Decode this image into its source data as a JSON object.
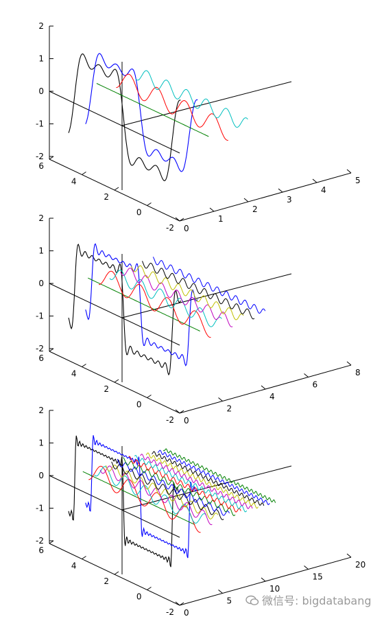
{
  "chart_data": [
    {
      "type": "line",
      "subtype": "3d-waterfall",
      "y_ticks": [
        "2",
        "1",
        "0",
        "-1",
        "-2"
      ],
      "x_ticks": [
        "6",
        "4",
        "2",
        "0",
        "-2"
      ],
      "z_ticks": [
        "0",
        "1",
        "2",
        "3",
        "4",
        "5"
      ],
      "z_range": [
        0,
        5
      ],
      "series": [
        {
          "color": "#000000",
          "kind": "sum",
          "values": [
            -0.9,
            -1.35,
            -0.9,
            0.6,
            1.0,
            0.5,
            -0.2,
            -1.2,
            -1.6,
            -1.8
          ]
        },
        {
          "color": "#0000ff",
          "kind": "sum",
          "values": [
            -0.95,
            -0.3,
            0.55,
            0.85,
            0.4,
            -0.5,
            -1.45,
            -1.7
          ]
        },
        {
          "color": "#008000",
          "kind": "sine",
          "values": [
            0,
            0,
            0,
            0
          ]
        },
        {
          "color": "#ff0000",
          "kind": "sine",
          "values": [
            0.8,
            -0.8,
            0.8,
            -0.8
          ]
        },
        {
          "color": "#00bfbf",
          "kind": "sine",
          "values": [
            0,
            0,
            0,
            0
          ]
        }
      ]
    },
    {
      "type": "line",
      "subtype": "3d-waterfall",
      "y_ticks": [
        "2",
        "1",
        "0",
        "-1",
        "-2"
      ],
      "x_ticks": [
        "6",
        "4",
        "2",
        "0",
        "-2"
      ],
      "z_ticks": [
        "0",
        "2",
        "4",
        "6",
        "8"
      ],
      "z_range": [
        0,
        8
      ],
      "series": [
        {
          "color": "#000000",
          "kind": "sum"
        },
        {
          "color": "#0000ff",
          "kind": "sum"
        },
        {
          "color": "#008000",
          "kind": "sine"
        },
        {
          "color": "#ff0000",
          "kind": "sine"
        },
        {
          "color": "#00bfbf",
          "kind": "sine"
        },
        {
          "color": "#bf00bf",
          "kind": "sine"
        },
        {
          "color": "#bfbf00",
          "kind": "sine"
        },
        {
          "color": "#000000",
          "kind": "sine"
        },
        {
          "color": "#0000ff",
          "kind": "sine"
        }
      ]
    },
    {
      "type": "line",
      "subtype": "3d-waterfall",
      "y_ticks": [
        "2",
        "1",
        "0",
        "-1",
        "-2"
      ],
      "x_ticks": [
        "6",
        "4",
        "2",
        "0",
        "-2"
      ],
      "z_ticks": [
        "0",
        "5",
        "10",
        "15",
        "20"
      ],
      "z_range": [
        0,
        20
      ],
      "series_colors": [
        "#000000",
        "#0000ff",
        "#008000",
        "#ff0000",
        "#00bfbf",
        "#bf00bf",
        "#bfbf00",
        "#000000",
        "#0000ff",
        "#008000",
        "#ff0000",
        "#00bfbf",
        "#bf00bf",
        "#bfbf00",
        "#000000",
        "#0000ff",
        "#008000"
      ]
    }
  ],
  "watermark": {
    "text": "微信号: bigdatabang",
    "icon": "wechat-icon"
  }
}
